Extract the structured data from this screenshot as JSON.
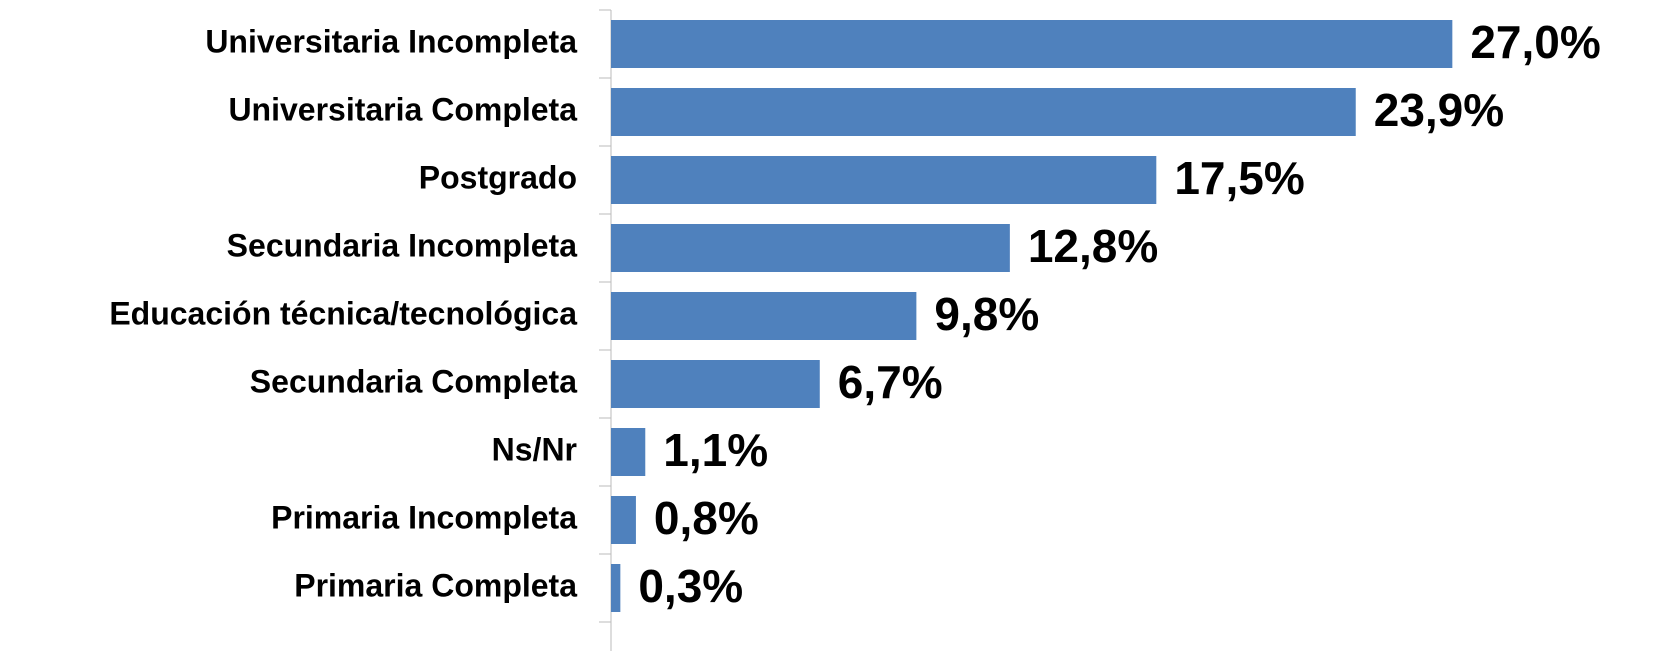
{
  "chart_data": {
    "type": "hbar",
    "categories": [
      "Universitaria Incompleta",
      "Universitaria Completa",
      "Postgrado",
      "Secundaria Incompleta",
      "Educación técnica/tecnológica",
      "Secundaria Completa",
      "Ns/Nr",
      "Primaria Incompleta",
      "Primaria Completa"
    ],
    "values": [
      27.0,
      23.9,
      17.5,
      12.8,
      9.8,
      6.7,
      1.1,
      0.8,
      0.3
    ],
    "value_labels": [
      "27,0%",
      "23,9%",
      "17,5%",
      "12,8%",
      "9,8%",
      "6,7%",
      "1,1%",
      "0,8%",
      "0,3%"
    ],
    "color": "#4f81bd",
    "xlim": [
      0,
      33.6
    ]
  }
}
